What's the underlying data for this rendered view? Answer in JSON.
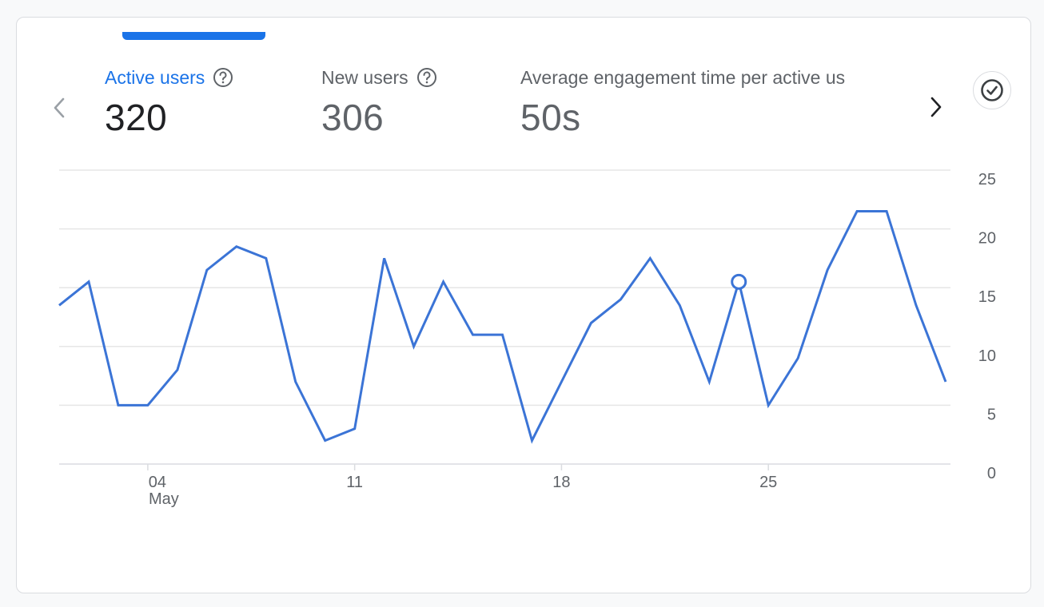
{
  "metrics": [
    {
      "label": "Active users",
      "value": "320",
      "active": true
    },
    {
      "label": "New users",
      "value": "306",
      "active": false
    },
    {
      "label": "Average engagement time per active us",
      "value": "50s",
      "active": false
    }
  ],
  "colors": {
    "accent": "#1a73e8",
    "line": "#3b74d6",
    "grid": "#e6e6e6",
    "text_muted": "#5f6368"
  },
  "icons": {
    "prev": "chevron-left-icon",
    "next": "chevron-right-icon",
    "help": "help-circle-icon",
    "check": "check-circle-icon"
  },
  "chart_data": {
    "type": "line",
    "x_tick_labels": [
      "04",
      "11",
      "18",
      "25"
    ],
    "x_tick_sublabels": [
      "May",
      "",
      "",
      ""
    ],
    "x_tick_days": [
      4,
      11,
      18,
      25
    ],
    "x": [
      1,
      2,
      3,
      4,
      5,
      6,
      7,
      8,
      9,
      10,
      11,
      12,
      13,
      14,
      15,
      16,
      17,
      18,
      19,
      20,
      21,
      22,
      23,
      24,
      25,
      26,
      27,
      28,
      29,
      30,
      31
    ],
    "xlim": [
      1,
      31
    ],
    "series": [
      {
        "values": [
          13.5,
          15.5,
          5,
          5,
          8,
          16.5,
          18.5,
          17.5,
          7,
          2,
          3,
          17.5,
          10,
          15.5,
          11,
          11,
          2,
          7,
          12,
          14,
          17.5,
          13.5,
          7,
          15.5,
          5,
          9,
          16.5,
          21.5,
          21.5,
          13.5,
          7
        ]
      }
    ],
    "highlight_x": 24,
    "ylim": [
      0,
      25
    ],
    "yticks": [
      0,
      5,
      10,
      15,
      20,
      25
    ],
    "ylabel": "",
    "xlabel": "",
    "title": "",
    "grid": true,
    "y_axis_side": "right"
  }
}
